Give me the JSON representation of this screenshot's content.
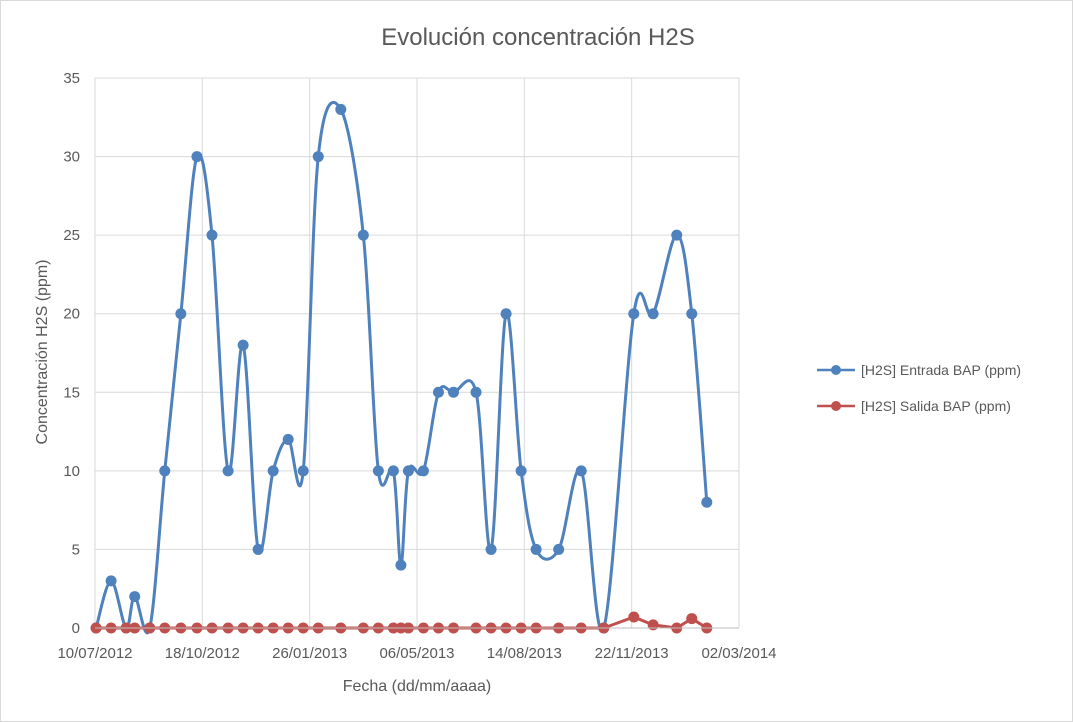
{
  "chart_data": {
    "type": "line",
    "title": "Evolución concentración  H2S",
    "xlabel": "Fecha (dd/mm/aaaa)",
    "ylabel": "Concentración H2S (ppm)",
    "x_axis_type": "date",
    "xlim": [
      "2012-07-10",
      "2014-03-02"
    ],
    "x_ticks": [
      "10/07/2012",
      "18/10/2012",
      "26/01/2013",
      "06/05/2013",
      "14/08/2013",
      "22/11/2013",
      "02/03/2014"
    ],
    "ylim": [
      0,
      35
    ],
    "y_ticks": [
      0,
      5,
      10,
      15,
      20,
      25,
      30,
      35
    ],
    "grid": true,
    "legend_position": "right",
    "series": [
      {
        "name": "[H2S] Entrada BAP (ppm)",
        "color": "#4f81bd",
        "smooth": true,
        "points": [
          [
            "2012-07-11",
            0
          ],
          [
            "2012-07-25",
            3
          ],
          [
            "2012-08-08",
            0
          ],
          [
            "2012-08-16",
            2
          ],
          [
            "2012-08-30",
            0
          ],
          [
            "2012-09-13",
            10
          ],
          [
            "2012-09-28",
            20
          ],
          [
            "2012-10-13",
            30
          ],
          [
            "2012-10-27",
            25
          ],
          [
            "2012-11-11",
            10
          ],
          [
            "2012-11-25",
            18
          ],
          [
            "2012-12-09",
            5
          ],
          [
            "2012-12-23",
            10
          ],
          [
            "2013-01-06",
            12
          ],
          [
            "2013-01-20",
            10
          ],
          [
            "2013-02-03",
            30
          ],
          [
            "2013-02-24",
            33
          ],
          [
            "2013-03-17",
            25
          ],
          [
            "2013-03-31",
            10
          ],
          [
            "2013-04-14",
            10
          ],
          [
            "2013-04-21",
            4
          ],
          [
            "2013-04-28",
            10
          ],
          [
            "2013-05-12",
            10
          ],
          [
            "2013-05-26",
            15
          ],
          [
            "2013-06-09",
            15
          ],
          [
            "2013-06-30",
            15
          ],
          [
            "2013-07-14",
            5
          ],
          [
            "2013-07-28",
            20
          ],
          [
            "2013-08-11",
            10
          ],
          [
            "2013-08-25",
            5
          ],
          [
            "2013-09-15",
            5
          ],
          [
            "2013-10-06",
            10
          ],
          [
            "2013-10-27",
            0
          ],
          [
            "2013-11-24",
            20
          ],
          [
            "2013-12-12",
            20
          ],
          [
            "2014-01-03",
            25
          ],
          [
            "2014-01-17",
            20
          ],
          [
            "2014-01-31",
            8
          ]
        ]
      },
      {
        "name": "[H2S] Salida BAP (ppm)",
        "color": "#c0504d",
        "smooth": false,
        "points": [
          [
            "2012-07-11",
            0
          ],
          [
            "2012-07-25",
            0
          ],
          [
            "2012-08-08",
            0
          ],
          [
            "2012-08-16",
            0
          ],
          [
            "2012-08-30",
            0
          ],
          [
            "2012-09-13",
            0
          ],
          [
            "2012-09-28",
            0
          ],
          [
            "2012-10-13",
            0
          ],
          [
            "2012-10-27",
            0
          ],
          [
            "2012-11-11",
            0
          ],
          [
            "2012-11-25",
            0
          ],
          [
            "2012-12-09",
            0
          ],
          [
            "2012-12-23",
            0
          ],
          [
            "2013-01-06",
            0
          ],
          [
            "2013-01-20",
            0
          ],
          [
            "2013-02-03",
            0
          ],
          [
            "2013-02-24",
            0
          ],
          [
            "2013-03-17",
            0
          ],
          [
            "2013-03-31",
            0
          ],
          [
            "2013-04-14",
            0
          ],
          [
            "2013-04-21",
            0
          ],
          [
            "2013-04-28",
            0
          ],
          [
            "2013-05-12",
            0
          ],
          [
            "2013-05-26",
            0
          ],
          [
            "2013-06-09",
            0
          ],
          [
            "2013-06-30",
            0
          ],
          [
            "2013-07-14",
            0
          ],
          [
            "2013-07-28",
            0
          ],
          [
            "2013-08-11",
            0
          ],
          [
            "2013-08-25",
            0
          ],
          [
            "2013-09-15",
            0
          ],
          [
            "2013-10-06",
            0
          ],
          [
            "2013-10-27",
            0
          ],
          [
            "2013-11-24",
            0.7
          ],
          [
            "2013-12-12",
            0.2
          ],
          [
            "2014-01-03",
            0
          ],
          [
            "2014-01-17",
            0.6
          ],
          [
            "2014-01-31",
            0
          ]
        ]
      }
    ]
  }
}
